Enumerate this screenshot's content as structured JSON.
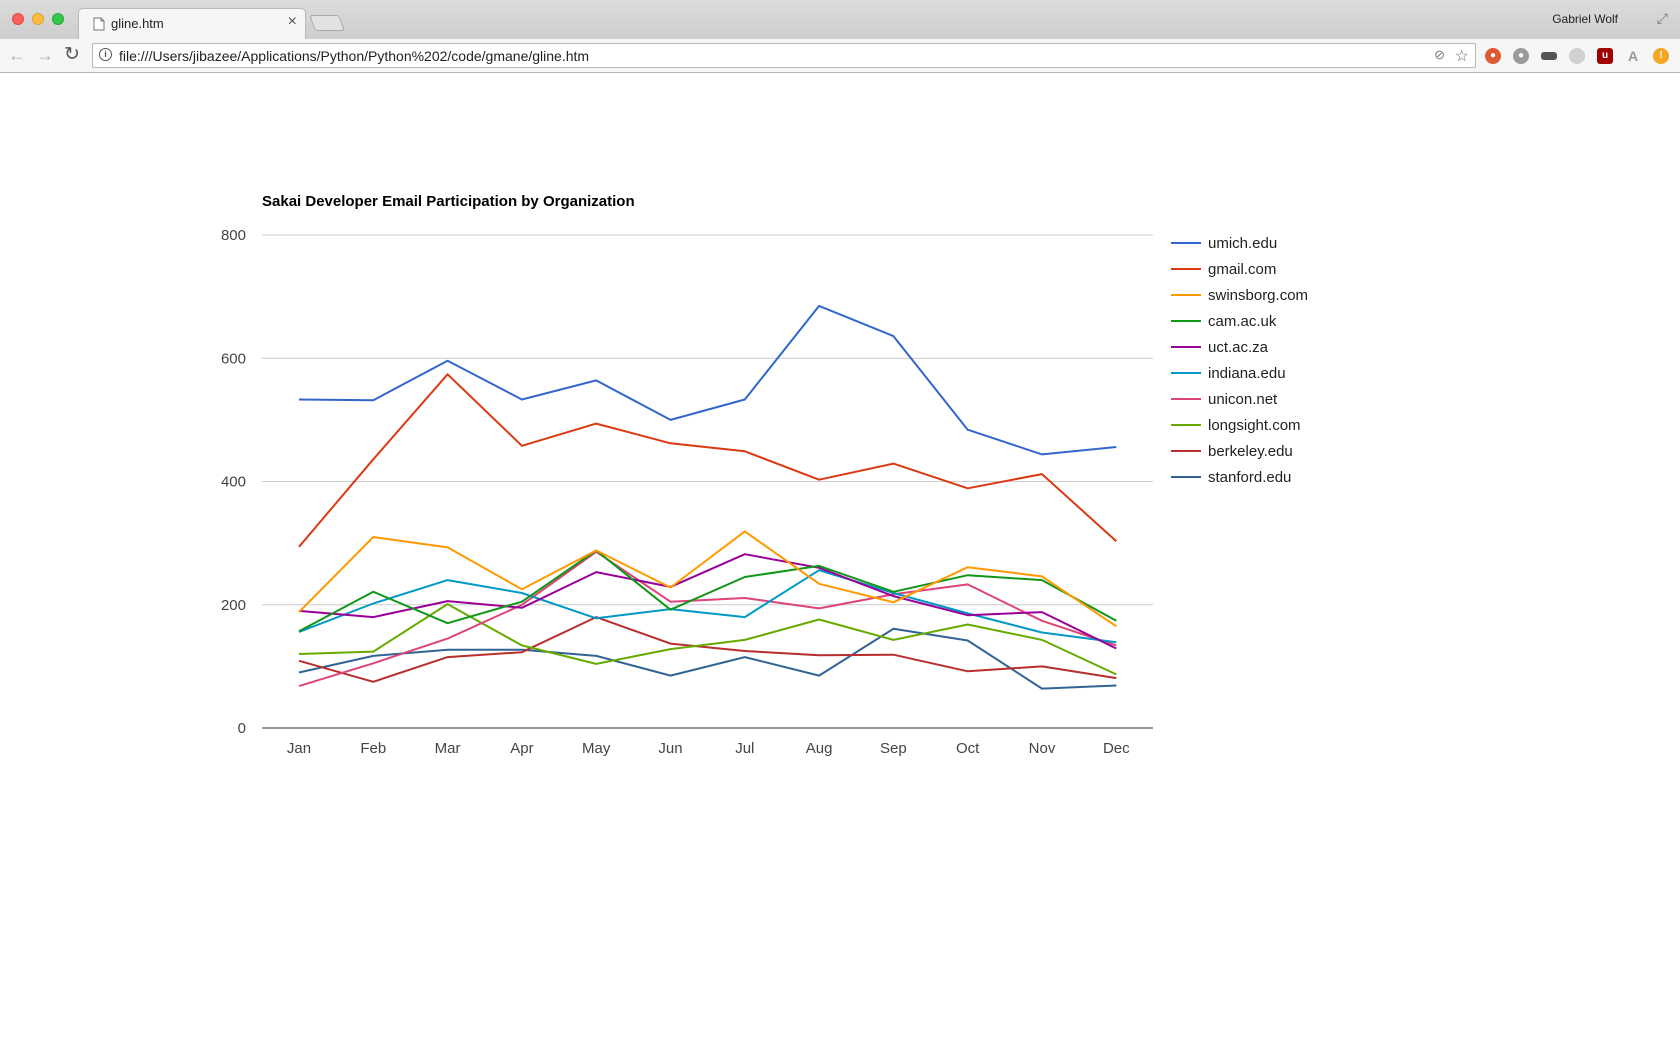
{
  "browser": {
    "tab_title": "gline.htm",
    "tab_close": "×",
    "profile_name": "Gabriel Wolf",
    "url": "file:///Users/jibazee/Applications/Python/Python%202/code/gmane/gline.htm",
    "icons": [
      "close-window-icon",
      "minimize-window-icon",
      "maximize-window-icon",
      "page-icon",
      "back-icon",
      "forward-icon",
      "reload-icon",
      "info-icon",
      "translate-icon",
      "star-icon",
      "duckduckgo-icon",
      "ghostery-icon",
      "incognito-icon",
      "extension-icon",
      "ublock-icon",
      "font-size-icon",
      "alert-icon"
    ]
  },
  "chart_data": {
    "type": "line",
    "title": "Sakai Developer Email Participation by Organization",
    "xlabel": "",
    "ylabel": "",
    "categories": [
      "Jan",
      "Feb",
      "Mar",
      "Apr",
      "May",
      "Jun",
      "Jul",
      "Aug",
      "Sep",
      "Oct",
      "Nov",
      "Dec"
    ],
    "ylim": [
      0,
      800
    ],
    "yticks": [
      0,
      200,
      400,
      600,
      800
    ],
    "grid": true,
    "legend_position": "right",
    "series": [
      {
        "name": "umich.edu",
        "color": "#3366cc",
        "values": [
          533,
          532,
          596,
          533,
          564,
          500,
          533,
          685,
          636,
          484,
          444,
          456
        ]
      },
      {
        "name": "gmail.com",
        "color": "#dc3912",
        "values": [
          294,
          436,
          574,
          458,
          494,
          462,
          449,
          403,
          429,
          389,
          412,
          303
        ]
      },
      {
        "name": "swinsborg.com",
        "color": "#ff9900",
        "values": [
          188,
          310,
          293,
          225,
          288,
          228,
          319,
          234,
          204,
          261,
          246,
          165
        ]
      },
      {
        "name": "cam.ac.uk",
        "color": "#109618",
        "values": [
          157,
          221,
          170,
          205,
          288,
          192,
          245,
          263,
          221,
          248,
          240,
          174
        ]
      },
      {
        "name": "uct.ac.za",
        "color": "#990099",
        "values": [
          190,
          180,
          206,
          195,
          253,
          229,
          282,
          260,
          214,
          183,
          188,
          129
        ]
      },
      {
        "name": "indiana.edu",
        "color": "#0099c6",
        "values": [
          156,
          202,
          240,
          219,
          178,
          193,
          180,
          256,
          219,
          186,
          155,
          139
        ]
      },
      {
        "name": "unicon.net",
        "color": "#dd4477",
        "values": [
          68,
          105,
          145,
          200,
          286,
          205,
          211,
          194,
          217,
          233,
          174,
          134
        ]
      },
      {
        "name": "longsight.com",
        "color": "#66aa00",
        "values": [
          120,
          124,
          201,
          134,
          104,
          128,
          143,
          176,
          143,
          168,
          143,
          87
        ]
      },
      {
        "name": "berkeley.edu",
        "color": "#b82e2e",
        "values": [
          109,
          75,
          115,
          123,
          180,
          137,
          125,
          118,
          119,
          92,
          100,
          81
        ]
      },
      {
        "name": "stanford.edu",
        "color": "#316395",
        "values": [
          90,
          117,
          127,
          127,
          117,
          85,
          115,
          85,
          161,
          142,
          64,
          69
        ]
      }
    ]
  }
}
